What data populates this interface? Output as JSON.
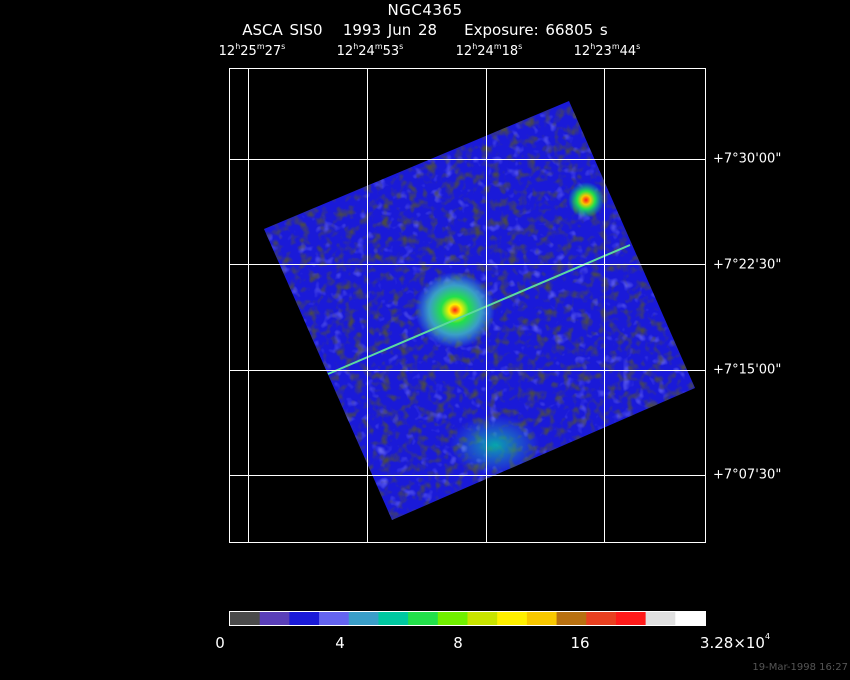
{
  "header": {
    "object": "NGC4365",
    "instrument": "ASCA SIS0",
    "date": "1993 Jun 28",
    "exposure": "Exposure: 66805 s"
  },
  "ra_labels": [
    {
      "h": "12",
      "m": "25",
      "s": "27"
    },
    {
      "h": "12",
      "m": "24",
      "s": "53"
    },
    {
      "h": "12",
      "m": "24",
      "s": "18"
    },
    {
      "h": "12",
      "m": "23",
      "s": "44"
    }
  ],
  "ra_units": {
    "h": "h",
    "m": "m",
    "s": "s"
  },
  "dec_labels": [
    "+7°30'00\"",
    "+7°22'30\"",
    "+7°15'00\"",
    "+7°07'30\""
  ],
  "colorbar": {
    "colors": [
      "#4a4a4a",
      "#5a3fb8",
      "#1a1ad8",
      "#6464f0",
      "#3a9ec8",
      "#00c8a0",
      "#22e04a",
      "#70f000",
      "#c8e400",
      "#fff000",
      "#f8c800",
      "#b87010",
      "#e84020",
      "#ff1a1a",
      "#e0e0e0",
      "#ffffff"
    ],
    "tick_labels": [
      "0",
      "4",
      "8",
      "16"
    ],
    "max_label_mantissa": "3.28×10",
    "max_label_exponent": "4"
  },
  "timestamp": "19-Mar-1998 16:27"
}
